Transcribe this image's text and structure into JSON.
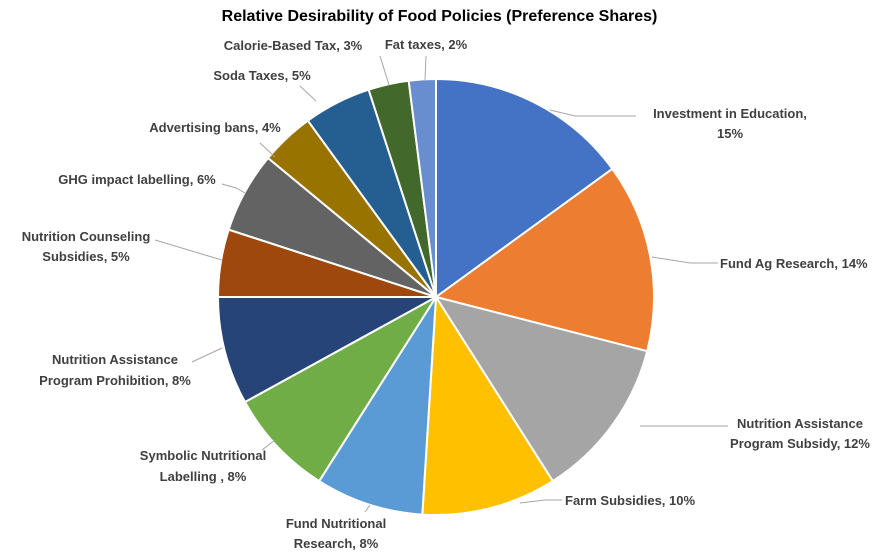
{
  "chart_data": {
    "type": "pie",
    "title": "Relative Desirability of Food Policies (Preference Shares)",
    "start_angle_deg": 0,
    "direction": "clockwise",
    "legend": "none",
    "slices": [
      {
        "label": "Investment in Education",
        "value": 15,
        "value_label": "15%",
        "color": "#4472C4"
      },
      {
        "label": "Fund Ag Research",
        "value": 14,
        "value_label": "14%",
        "color": "#ED7D31"
      },
      {
        "label": "Nutrition Assistance Program Subsidy",
        "value": 12,
        "value_label": "12%",
        "color": "#A5A5A5"
      },
      {
        "label": "Farm Subsidies",
        "value": 10,
        "value_label": "10%",
        "color": "#FFC000"
      },
      {
        "label": "Fund Nutritional Research",
        "value": 8,
        "value_label": "8%",
        "color": "#5B9BD5"
      },
      {
        "label": "Symbolic Nutritional Labelling",
        "value": 8,
        "value_label": "8%",
        "color": "#70AD47"
      },
      {
        "label": "Nutrition Assistance Program Prohibition",
        "value": 8,
        "value_label": "8%",
        "color": "#264478"
      },
      {
        "label": "Nutrition Counseling Subsidies",
        "value": 5,
        "value_label": "5%",
        "color": "#9E480E"
      },
      {
        "label": "GHG impact labelling",
        "value": 6,
        "value_label": "6%",
        "color": "#636363"
      },
      {
        "label": "Advertising bans",
        "value": 4,
        "value_label": "4%",
        "color": "#997300"
      },
      {
        "label": "Soda Taxes",
        "value": 5,
        "value_label": "5%",
        "color": "#255E91"
      },
      {
        "label": "Calorie-Based Tax",
        "value": 3,
        "value_label": "3%",
        "color": "#43682B"
      },
      {
        "label": "Fat taxes",
        "value": 2,
        "value_label": "2%",
        "color": "#698ED0"
      }
    ]
  }
}
